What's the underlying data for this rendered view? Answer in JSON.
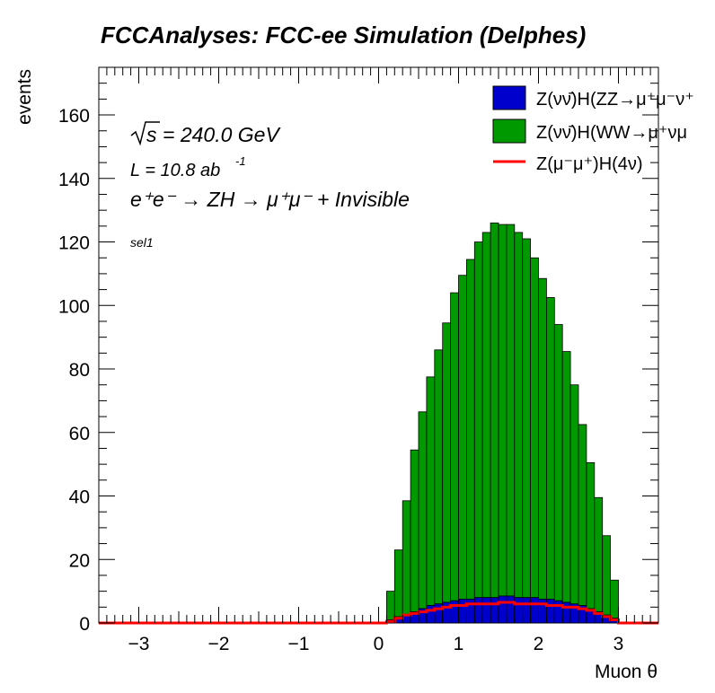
{
  "chart_data": {
    "type": "bar",
    "title": "FCCAnalyses: FCC-ee Simulation (Delphes)",
    "xlabel": "Muon θ",
    "ylabel": "events",
    "xlim": [
      -3.5,
      3.5
    ],
    "ylim": [
      0,
      175
    ],
    "x_ticks": [
      -3,
      -2,
      -1,
      0,
      1,
      2,
      3
    ],
    "y_ticks": [
      0,
      20,
      40,
      60,
      80,
      100,
      120,
      140,
      160
    ],
    "stacked": true,
    "grid": false,
    "legend_position": "top-right",
    "bin_width": 0.1,
    "x": [
      0.15,
      0.25,
      0.35,
      0.45,
      0.55,
      0.65,
      0.75,
      0.85,
      0.95,
      1.05,
      1.15,
      1.25,
      1.35,
      1.45,
      1.55,
      1.65,
      1.75,
      1.85,
      1.95,
      2.05,
      2.15,
      2.25,
      2.35,
      2.45,
      2.55,
      2.65,
      2.75,
      2.85,
      2.95
    ],
    "annotations": {
      "sqrt_s": "= 240.0 GeV",
      "sqrt_symbol": "s",
      "lumi": "L = 10.8 ab",
      "lumi_exp": "-1",
      "process": "e⁺e⁻ → ZH → μ⁺μ⁻ + Invisible",
      "selection": "sel1"
    },
    "series": [
      {
        "name": "Z(νν̄)H(ZZ→μ⁺μ⁻ν⁺",
        "color": "#0000cc",
        "kind": "stacked-bar",
        "values": [
          1,
          2,
          2.5,
          3.5,
          4.5,
          5.5,
          6,
          6.5,
          7,
          7.5,
          7.5,
          8,
          8,
          8,
          8.5,
          8.5,
          8,
          8,
          8,
          7.5,
          7.5,
          7,
          6.5,
          6,
          5.5,
          4.5,
          3.5,
          2.5,
          1.5
        ]
      },
      {
        "name": "Z(νν̄)H(WW→μ⁺νμ",
        "color": "#009900",
        "kind": "stacked-bar",
        "values": [
          9,
          21,
          36,
          51,
          62,
          72,
          80,
          88,
          97,
          102,
          107,
          112,
          115,
          118,
          117,
          117,
          115,
          113,
          107,
          101,
          95,
          87,
          79,
          69,
          57,
          46,
          36,
          25,
          12
        ]
      },
      {
        "name": "Z(μ⁻μ⁺)H(4ν)",
        "color": "#ff0000",
        "kind": "line",
        "values": [
          0.5,
          1.5,
          2.5,
          3,
          3.5,
          4,
          4.5,
          5,
          5.5,
          5.5,
          6,
          6,
          6,
          6,
          6.5,
          6.5,
          6,
          6,
          6,
          6,
          5.5,
          5.5,
          5,
          5,
          4.5,
          4,
          3,
          2,
          1
        ]
      }
    ]
  }
}
